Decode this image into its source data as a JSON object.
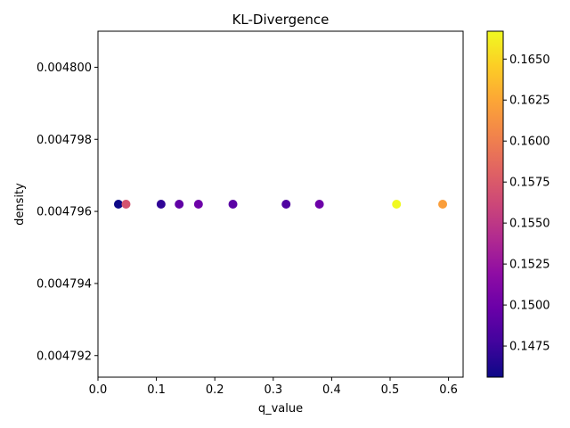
{
  "chart_data": {
    "type": "scatter",
    "title": "KL-Divergence",
    "xlabel": "q_value",
    "ylabel": "density",
    "xlim": [
      0.0,
      0.625
    ],
    "ylim": [
      0.0047914,
      0.004801
    ],
    "xticks": [
      "0.0",
      "0.1",
      "0.2",
      "0.3",
      "0.4",
      "0.5",
      "0.6"
    ],
    "yticks": [
      "0.004792",
      "0.004794",
      "0.004796",
      "0.004798",
      "0.004800"
    ],
    "grid": false,
    "colormap": "plasma",
    "colorbar": {
      "range": [
        0.1456,
        0.1667
      ],
      "ticks": [
        "0.1475",
        "0.1500",
        "0.1525",
        "0.1550",
        "0.1575",
        "0.1600",
        "0.1625",
        "0.1650"
      ]
    },
    "points": [
      {
        "x": 0.035,
        "y": 0.0047962,
        "c": 0.1456
      },
      {
        "x": 0.048,
        "y": 0.0047962,
        "c": 0.157
      },
      {
        "x": 0.108,
        "y": 0.0047962,
        "c": 0.147
      },
      {
        "x": 0.139,
        "y": 0.0047962,
        "c": 0.1493
      },
      {
        "x": 0.172,
        "y": 0.0047962,
        "c": 0.15
      },
      {
        "x": 0.231,
        "y": 0.0047962,
        "c": 0.149
      },
      {
        "x": 0.322,
        "y": 0.0047962,
        "c": 0.1485
      },
      {
        "x": 0.379,
        "y": 0.0047962,
        "c": 0.15
      },
      {
        "x": 0.511,
        "y": 0.0047962,
        "c": 0.1667
      },
      {
        "x": 0.59,
        "y": 0.0047962,
        "c": 0.162
      }
    ]
  }
}
